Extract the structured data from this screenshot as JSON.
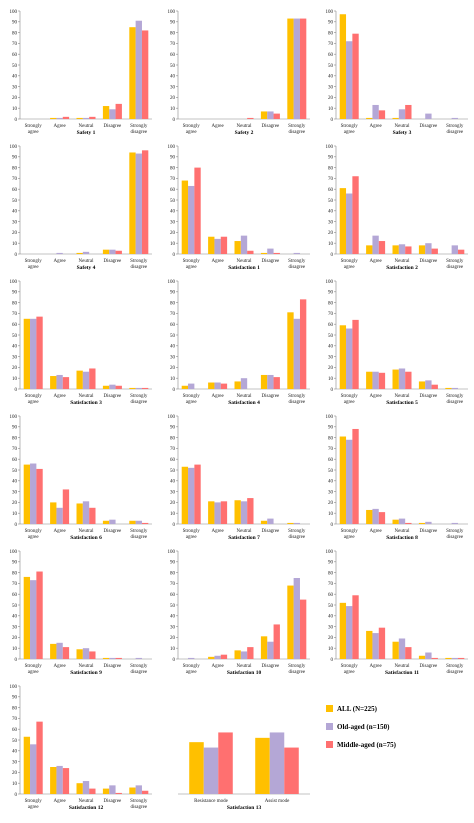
{
  "chart_data": [
    {
      "type": "bar",
      "title": "Safety 1",
      "categories": [
        "Strongly agree",
        "Agree",
        "Neutral",
        "Disagree",
        "Strongly disagree"
      ],
      "ylim": [
        0,
        100
      ],
      "yticks": [
        0,
        10,
        20,
        30,
        40,
        50,
        60,
        70,
        80,
        90,
        100
      ],
      "series": [
        {
          "name": "ALL (N=225)",
          "values": [
            0,
            1,
            1,
            12,
            85
          ]
        },
        {
          "name": "Old-aged (n=150)",
          "values": [
            0,
            1,
            1,
            9,
            91
          ]
        },
        {
          "name": "Middle-aged (n=75)",
          "values": [
            0,
            2,
            2,
            14,
            82
          ]
        }
      ]
    },
    {
      "type": "bar",
      "title": "Safety 2",
      "categories": [
        "Strongly agree",
        "Agree",
        "Neutral",
        "Disagree",
        "Strongly disagree"
      ],
      "ylim": [
        0,
        100
      ],
      "yticks": [
        0,
        10,
        20,
        30,
        40,
        50,
        60,
        70,
        80,
        90,
        100
      ],
      "series": [
        {
          "name": "ALL (N=225)",
          "values": [
            0,
            0,
            0,
            7,
            93
          ]
        },
        {
          "name": "Old-aged (n=150)",
          "values": [
            0,
            0,
            0,
            7,
            93
          ]
        },
        {
          "name": "Middle-aged (n=75)",
          "values": [
            0,
            0,
            1,
            5,
            93
          ]
        }
      ]
    },
    {
      "type": "bar",
      "title": "Safety 3",
      "categories": [
        "Strongly agree",
        "Agree",
        "Neutral",
        "Disagree",
        "Strongly disagree"
      ],
      "ylim": [
        0,
        100
      ],
      "yticks": [
        0,
        10,
        20,
        30,
        40,
        50,
        60,
        70,
        80,
        90,
        100
      ],
      "series": [
        {
          "name": "ALL (N=225)",
          "values": [
            97,
            1,
            1,
            0,
            0
          ]
        },
        {
          "name": "Old-aged (n=150)",
          "values": [
            72,
            13,
            9,
            5,
            1
          ]
        },
        {
          "name": "Middle-aged (n=75)",
          "values": [
            79,
            8,
            13,
            0,
            0
          ]
        }
      ]
    },
    {
      "type": "bar",
      "title": "Safety 4",
      "categories": [
        "Strongly agree",
        "Agree",
        "Neutral",
        "Disagree",
        "Strongly disagree"
      ],
      "ylim": [
        0,
        100
      ],
      "yticks": [
        0,
        10,
        20,
        30,
        40,
        50,
        60,
        70,
        80,
        90,
        100
      ],
      "series": [
        {
          "name": "ALL (N=225)",
          "values": [
            0,
            0,
            1,
            4,
            94
          ]
        },
        {
          "name": "Old-aged (n=150)",
          "values": [
            0,
            1,
            2,
            4,
            93
          ]
        },
        {
          "name": "Middle-aged (n=75)",
          "values": [
            0,
            0,
            0,
            3,
            96
          ]
        }
      ]
    },
    {
      "type": "bar",
      "title": "Satisfaction 1",
      "categories": [
        "Strongly agree",
        "Agree",
        "Neutral",
        "Disagree",
        "Strongly disagree"
      ],
      "ylim": [
        0,
        100
      ],
      "yticks": [
        0,
        10,
        20,
        30,
        40,
        50,
        60,
        70,
        80,
        90,
        100
      ],
      "series": [
        {
          "name": "ALL (N=225)",
          "values": [
            68,
            16,
            12,
            1,
            0
          ]
        },
        {
          "name": "Old-aged (n=150)",
          "values": [
            63,
            14,
            17,
            5,
            1
          ]
        },
        {
          "name": "Middle-aged (n=75)",
          "values": [
            80,
            16,
            3,
            1,
            0
          ]
        }
      ]
    },
    {
      "type": "bar",
      "title": "Satisfaction 2",
      "categories": [
        "Strongly agree",
        "Agree",
        "Neutral",
        "Disagree",
        "Strongly disagree"
      ],
      "ylim": [
        0,
        100
      ],
      "yticks": [
        0,
        10,
        20,
        30,
        40,
        50,
        60,
        70,
        80,
        90,
        100
      ],
      "series": [
        {
          "name": "ALL (N=225)",
          "values": [
            61,
            8,
            8,
            8,
            0
          ]
        },
        {
          "name": "Old-aged (n=150)",
          "values": [
            56,
            17,
            9,
            10,
            8
          ]
        },
        {
          "name": "Middle-aged (n=75)",
          "values": [
            72,
            12,
            7,
            5,
            4
          ]
        }
      ]
    },
    {
      "type": "bar",
      "title": "Satisfaction 3",
      "categories": [
        "Strongly agree",
        "Agree",
        "Neutral",
        "Disagree",
        "Strongly disagree"
      ],
      "ylim": [
        0,
        100
      ],
      "yticks": [
        0,
        10,
        20,
        30,
        40,
        50,
        60,
        70,
        80,
        90,
        100
      ],
      "series": [
        {
          "name": "ALL (N=225)",
          "values": [
            65,
            12,
            17,
            3,
            1
          ]
        },
        {
          "name": "Old-aged (n=150)",
          "values": [
            65,
            13,
            16,
            4,
            1
          ]
        },
        {
          "name": "Middle-aged (n=75)",
          "values": [
            67,
            11,
            19,
            3,
            1
          ]
        }
      ]
    },
    {
      "type": "bar",
      "title": "Satisfaction 4",
      "categories": [
        "Strongly agree",
        "Agree",
        "Neutral",
        "Disagree",
        "Strongly disagree"
      ],
      "ylim": [
        0,
        100
      ],
      "yticks": [
        0,
        10,
        20,
        30,
        40,
        50,
        60,
        70,
        80,
        90,
        100
      ],
      "series": [
        {
          "name": "ALL (N=225)",
          "values": [
            3,
            6,
            7,
            13,
            71
          ]
        },
        {
          "name": "Old-aged (n=150)",
          "values": [
            5,
            6,
            10,
            13,
            65
          ]
        },
        {
          "name": "Middle-aged (n=75)",
          "values": [
            0,
            5,
            0,
            11,
            83
          ]
        }
      ]
    },
    {
      "type": "bar",
      "title": "Satisfaction 5",
      "categories": [
        "Strongly agree",
        "Agree",
        "Neutral",
        "Disagree",
        "Strongly disagree"
      ],
      "ylim": [
        0,
        100
      ],
      "yticks": [
        0,
        10,
        20,
        30,
        40,
        50,
        60,
        70,
        80,
        90,
        100
      ],
      "series": [
        {
          "name": "ALL (N=225)",
          "values": [
            59,
            16,
            18,
            7,
            1
          ]
        },
        {
          "name": "Old-aged (n=150)",
          "values": [
            56,
            16,
            19,
            8,
            1
          ]
        },
        {
          "name": "Middle-aged (n=75)",
          "values": [
            64,
            15,
            16,
            4,
            0
          ]
        }
      ]
    },
    {
      "type": "bar",
      "title": "Satisfaction 6",
      "categories": [
        "Strongly agree",
        "Agree",
        "Neutral",
        "Disagree",
        "Strongly disagree"
      ],
      "ylim": [
        0,
        100
      ],
      "yticks": [
        0,
        10,
        20,
        30,
        40,
        50,
        60,
        70,
        80,
        90,
        100
      ],
      "series": [
        {
          "name": "ALL (N=225)",
          "values": [
            55,
            20,
            19,
            3,
            3
          ]
        },
        {
          "name": "Old-aged (n=150)",
          "values": [
            56,
            15,
            21,
            4,
            3
          ]
        },
        {
          "name": "Middle-aged (n=75)",
          "values": [
            51,
            32,
            15,
            0,
            1
          ]
        }
      ]
    },
    {
      "type": "bar",
      "title": "Satisfaction 7",
      "categories": [
        "Strongly agree",
        "Agree",
        "Neutral",
        "Disagree",
        "Strongly disagree"
      ],
      "ylim": [
        0,
        100
      ],
      "yticks": [
        0,
        10,
        20,
        30,
        40,
        50,
        60,
        70,
        80,
        90,
        100
      ],
      "series": [
        {
          "name": "ALL (N=225)",
          "values": [
            53,
            21,
            22,
            3,
            1
          ]
        },
        {
          "name": "Old-aged (n=150)",
          "values": [
            52,
            20,
            21,
            5,
            1
          ]
        },
        {
          "name": "Middle-aged (n=75)",
          "values": [
            55,
            21,
            24,
            0,
            0
          ]
        }
      ]
    },
    {
      "type": "bar",
      "title": "Satisfaction 8",
      "categories": [
        "Strongly agree",
        "Agree",
        "Neutral",
        "Disagree",
        "Strongly disagree"
      ],
      "ylim": [
        0,
        100
      ],
      "yticks": [
        0,
        10,
        20,
        30,
        40,
        50,
        60,
        70,
        80,
        90,
        100
      ],
      "series": [
        {
          "name": "ALL (N=225)",
          "values": [
            81,
            13,
            4,
            1,
            0
          ]
        },
        {
          "name": "Old-aged (n=150)",
          "values": [
            78,
            14,
            5,
            2,
            1
          ]
        },
        {
          "name": "Middle-aged (n=75)",
          "values": [
            88,
            11,
            1,
            0,
            0
          ]
        }
      ]
    },
    {
      "type": "bar",
      "title": "Satisfaction 9",
      "categories": [
        "Strongly agree",
        "Agree",
        "Neutral",
        "Disagree",
        "Strongly disagree"
      ],
      "ylim": [
        0,
        100
      ],
      "yticks": [
        0,
        10,
        20,
        30,
        40,
        50,
        60,
        70,
        80,
        90,
        100
      ],
      "series": [
        {
          "name": "ALL (N=225)",
          "values": [
            76,
            14,
            9,
            1,
            0
          ]
        },
        {
          "name": "Old-aged (n=150)",
          "values": [
            73,
            15,
            10,
            1,
            1
          ]
        },
        {
          "name": "Middle-aged (n=75)",
          "values": [
            81,
            11,
            7,
            1,
            0
          ]
        }
      ]
    },
    {
      "type": "bar",
      "title": "Satisfaction 10",
      "categories": [
        "Strongly agree",
        "Agree",
        "Neutral",
        "Disagree",
        "Strongly disagree"
      ],
      "ylim": [
        0,
        100
      ],
      "yticks": [
        0,
        10,
        20,
        30,
        40,
        50,
        60,
        70,
        80,
        90,
        100
      ],
      "series": [
        {
          "name": "ALL (N=225)",
          "values": [
            0,
            2,
            8,
            21,
            68
          ]
        },
        {
          "name": "Old-aged (n=150)",
          "values": [
            1,
            3,
            7,
            16,
            75
          ]
        },
        {
          "name": "Middle-aged (n=75)",
          "values": [
            0,
            4,
            11,
            32,
            55
          ]
        }
      ]
    },
    {
      "type": "bar",
      "title": "Satisfaction 11",
      "categories": [
        "Strongly agree",
        "Agree",
        "Neutral",
        "Disagree",
        "Strongly disagree"
      ],
      "ylim": [
        0,
        100
      ],
      "yticks": [
        0,
        10,
        20,
        30,
        40,
        50,
        60,
        70,
        80,
        90,
        100
      ],
      "series": [
        {
          "name": "ALL (N=225)",
          "values": [
            52,
            26,
            16,
            3,
            1
          ]
        },
        {
          "name": "Old-aged (n=150)",
          "values": [
            49,
            24,
            19,
            6,
            1
          ]
        },
        {
          "name": "Middle-aged (n=75)",
          "values": [
            59,
            29,
            11,
            1,
            1
          ]
        }
      ]
    },
    {
      "type": "bar",
      "title": "Satisfaction 12",
      "categories": [
        "Strongly agree",
        "Agree",
        "Neutral",
        "Disagree",
        "Strongly disagree"
      ],
      "ylim": [
        0,
        100
      ],
      "yticks": [
        0,
        10,
        20,
        30,
        40,
        50,
        60,
        70,
        80,
        90,
        100
      ],
      "series": [
        {
          "name": "ALL (N=225)",
          "values": [
            53,
            25,
            10,
            5,
            6
          ]
        },
        {
          "name": "Old-aged (n=150)",
          "values": [
            46,
            26,
            12,
            8,
            8
          ]
        },
        {
          "name": "Middle-aged (n=75)",
          "values": [
            67,
            24,
            5,
            1,
            3
          ]
        }
      ]
    },
    {
      "type": "bar",
      "title": "Satisfaction 13",
      "categories": [
        "Resistance mode",
        "Assist mode"
      ],
      "ylim": [
        0,
        100
      ],
      "yticks": [],
      "series": [
        {
          "name": "ALL (N=225)",
          "values": [
            48,
            52
          ]
        },
        {
          "name": "Old-aged (n=150)",
          "values": [
            43,
            57
          ]
        },
        {
          "name": "Middle-aged (n=75)",
          "values": [
            57,
            43
          ]
        }
      ]
    }
  ],
  "series_colors": [
    "#FFC000",
    "#B4A7D6",
    "#FF7070"
  ],
  "legend": {
    "items": [
      {
        "label": "ALL (N=225)",
        "color": "#FFC000"
      },
      {
        "label": "Old-aged (n=150)",
        "color": "#B4A7D6"
      },
      {
        "label": "Middle-aged (n=75)",
        "color": "#FF7070"
      }
    ]
  }
}
